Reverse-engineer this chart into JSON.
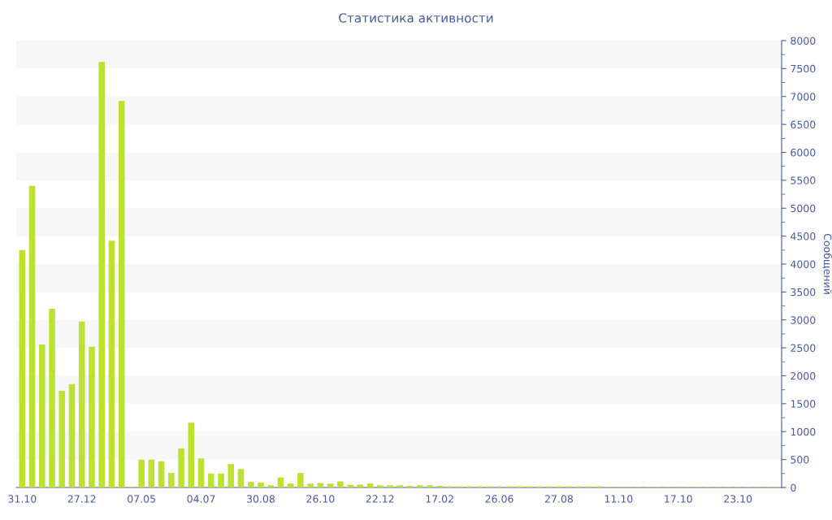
{
  "chart_data": {
    "type": "bar",
    "title": "Статистика активности",
    "ylabel": "Сообщений",
    "categories": [
      "31.10",
      null,
      null,
      null,
      null,
      null,
      "27.12",
      null,
      null,
      null,
      null,
      null,
      "07.05",
      null,
      null,
      null,
      null,
      null,
      "04.07",
      null,
      null,
      null,
      null,
      null,
      "30.08",
      null,
      null,
      null,
      null,
      null,
      "26.10",
      null,
      null,
      null,
      null,
      null,
      "22.12",
      null,
      null,
      null,
      null,
      null,
      "17.02",
      null,
      null,
      null,
      null,
      null,
      "26.06",
      null,
      null,
      null,
      null,
      null,
      "27.08",
      null,
      null,
      null,
      null,
      null,
      "11.10",
      null,
      null,
      null,
      null,
      null,
      "17.10",
      null,
      null,
      null,
      null,
      null,
      "23.10",
      null,
      null,
      null,
      null
    ],
    "values": [
      4250,
      5400,
      2560,
      3200,
      1730,
      1850,
      2970,
      2520,
      7620,
      4420,
      6920,
      10,
      500,
      500,
      470,
      260,
      700,
      1160,
      520,
      250,
      250,
      420,
      330,
      100,
      90,
      40,
      180,
      70,
      260,
      70,
      80,
      70,
      110,
      50,
      50,
      70,
      40,
      40,
      40,
      30,
      40,
      40,
      30,
      20,
      20,
      20,
      20,
      20,
      20,
      20,
      20,
      20,
      20,
      20,
      20,
      20,
      20,
      20,
      20,
      10,
      10,
      10,
      10,
      10,
      10,
      10,
      10,
      10,
      10,
      10,
      10,
      10,
      10,
      10,
      10,
      10,
      10
    ],
    "color": "#bde130",
    "ylim": [
      0,
      8000
    ],
    "yticks": [
      0,
      500,
      1000,
      1500,
      2000,
      2500,
      3000,
      3500,
      4000,
      4500,
      5000,
      5500,
      6000,
      6500,
      7000,
      7500,
      8000
    ],
    "bands": [
      {
        "axis": "y",
        "from": 500,
        "to": 1000,
        "color": "#f7f7f7"
      },
      {
        "axis": "y",
        "from": 1500,
        "to": 2000,
        "color": "#f7f7f7"
      },
      {
        "axis": "y",
        "from": 2500,
        "to": 3000,
        "color": "#f7f7f7"
      },
      {
        "axis": "y",
        "from": 3500,
        "to": 4000,
        "color": "#f7f7f7"
      },
      {
        "axis": "y",
        "from": 4500,
        "to": 5000,
        "color": "#f7f7f7"
      },
      {
        "axis": "y",
        "from": 5500,
        "to": 6000,
        "color": "#f7f7f7"
      },
      {
        "axis": "y",
        "from": 6500,
        "to": 7000,
        "color": "#f7f7f7"
      },
      {
        "axis": "y",
        "from": 7500,
        "to": 8000,
        "color": "#f7f7f7"
      }
    ]
  }
}
